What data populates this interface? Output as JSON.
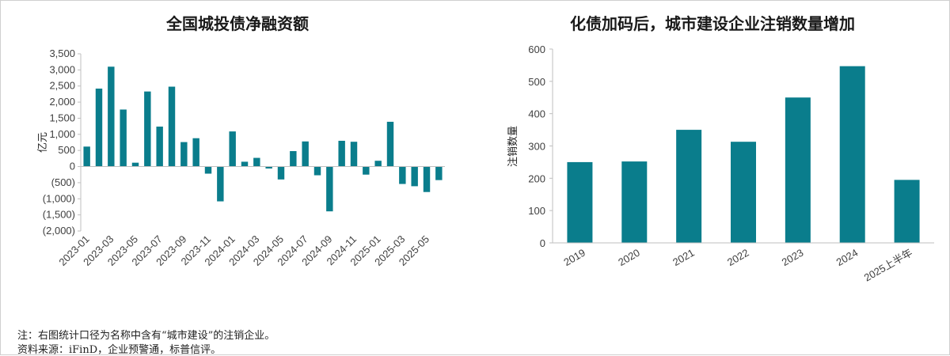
{
  "footnote": {
    "note": "注：右图统计口径为名称中含有“城市建设”的注销企业。",
    "source": "资料来源：iFinD，企业预警通，标普信评。"
  },
  "colors": {
    "bar": "#0a7d8c",
    "axis": "#bfbfbf",
    "text": "#404040"
  },
  "chart_data": [
    {
      "type": "bar",
      "title": "全国城投债净融资额",
      "ylabel": "亿元",
      "ylim": [
        -2000,
        3500
      ],
      "yticks": [
        3500,
        3000,
        2500,
        2000,
        1500,
        1000,
        500,
        0,
        -500,
        -1000,
        -1500,
        -2000
      ],
      "ytick_labels": [
        "3,500",
        "3,000",
        "2,500",
        "2,000",
        "1,500",
        "1,000",
        "500",
        "0",
        "(500)",
        "(1,000)",
        "(1,500)",
        "(2,000)"
      ],
      "categories": [
        "2023-01",
        "2023-02",
        "2023-03",
        "2023-04",
        "2023-05",
        "2023-06",
        "2023-07",
        "2023-08",
        "2023-09",
        "2023-10",
        "2023-11",
        "2023-12",
        "2024-01",
        "2024-02",
        "2024-03",
        "2024-04",
        "2024-05",
        "2024-06",
        "2024-07",
        "2024-08",
        "2024-09",
        "2024-10",
        "2024-11",
        "2024-12",
        "2025-01",
        "2025-02",
        "2025-03",
        "2025-04",
        "2025-05",
        "2025-06"
      ],
      "xtick_labels": [
        "2023-01",
        "2023-03",
        "2023-05",
        "2023-07",
        "2023-09",
        "2023-11",
        "2024-01",
        "2024-03",
        "2024-05",
        "2024-07",
        "2024-09",
        "2024-11",
        "2025-01",
        "2025-03",
        "2025-05"
      ],
      "values": [
        620,
        2420,
        3100,
        1770,
        120,
        2330,
        1240,
        2480,
        760,
        880,
        -220,
        -1080,
        1090,
        150,
        270,
        -60,
        -400,
        480,
        780,
        -270,
        -1390,
        800,
        770,
        -250,
        180,
        1390,
        -540,
        -610,
        -790,
        -420
      ],
      "grid": false
    },
    {
      "type": "bar",
      "title": "化债加码后，城市建设企业注销数量增加",
      "ylabel": "注销数量",
      "ylim": [
        0,
        600
      ],
      "yticks": [
        0,
        100,
        200,
        300,
        400,
        500,
        600
      ],
      "ytick_labels": [
        "0",
        "100",
        "200",
        "300",
        "400",
        "500",
        "600"
      ],
      "categories": [
        "2019",
        "2020",
        "2021",
        "2022",
        "2023",
        "2024",
        "2025上半年"
      ],
      "values": [
        250,
        252,
        350,
        313,
        450,
        547,
        195
      ],
      "grid": false
    }
  ]
}
